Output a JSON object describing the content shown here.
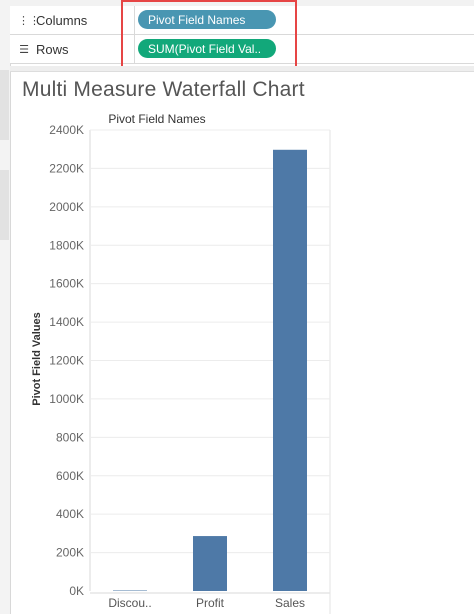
{
  "shelves": {
    "columns": {
      "label": "Columns",
      "icon": "columns-icon",
      "pill": "Pivot Field Names",
      "pill_color": "#4996b2"
    },
    "rows": {
      "label": "Rows",
      "icon": "rows-icon",
      "pill": "SUM(Pivot Field Val..",
      "pill_color": "#12a87a"
    }
  },
  "sheet": {
    "title": "Multi Measure Waterfall Chart"
  },
  "chart_data": {
    "type": "bar",
    "title": "Pivot Field Names",
    "xlabel": "",
    "ylabel": "Pivot Field Values",
    "categories": [
      "Discou..",
      "Profit",
      "Sales"
    ],
    "values": [
      1.6,
      286,
      2297
    ],
    "ylim": [
      0,
      2400
    ],
    "yticks": [
      0,
      200,
      400,
      600,
      800,
      1000,
      1200,
      1400,
      1600,
      1800,
      2000,
      2200,
      2400
    ],
    "ytick_labels": [
      "0K",
      "200K",
      "400K",
      "600K",
      "800K",
      "1000K",
      "1200K",
      "1400K",
      "1600K",
      "1800K",
      "2000K",
      "2200K",
      "2400K"
    ],
    "bar_color": "#4e79a7",
    "grid": true
  }
}
